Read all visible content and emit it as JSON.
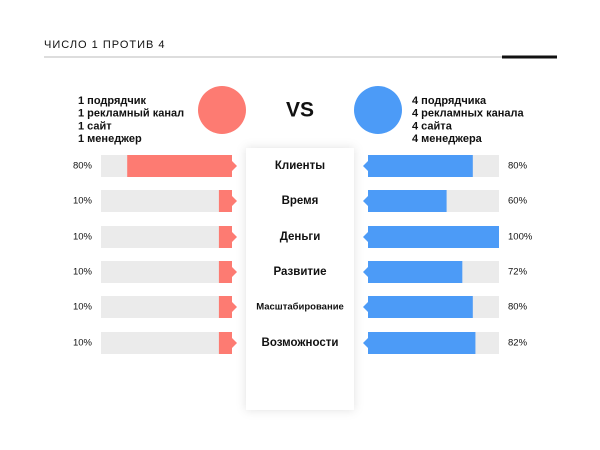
{
  "chart_data": {
    "type": "butterfly",
    "title": "ЧИСЛО 1 ПРОТИВ 4",
    "vs_label": "VS",
    "categories": [
      "Клиенты",
      "Время",
      "Деньги",
      "Развитие",
      "Масштабирование",
      "Возможности"
    ],
    "xlim": [
      0,
      100
    ],
    "series": [
      {
        "description": [
          "1 подрядчик",
          "1 рекламный канал",
          "1 сайт",
          "1 менеджер"
        ],
        "color": "#fd7b72",
        "values": [
          80,
          10,
          10,
          10,
          10,
          10
        ],
        "value_labels": [
          "80%",
          "10%",
          "10%",
          "10%",
          "10%",
          "10%"
        ]
      },
      {
        "description": [
          "4 подрядчика",
          "4 рекламных канала",
          "4 сайта",
          "4 менеджера"
        ],
        "color": "#4c9bf7",
        "values": [
          80,
          60,
          100,
          72,
          80,
          82
        ],
        "value_labels": [
          "80%",
          "60%",
          "100%",
          "72%",
          "80%",
          "82%"
        ]
      }
    ]
  }
}
